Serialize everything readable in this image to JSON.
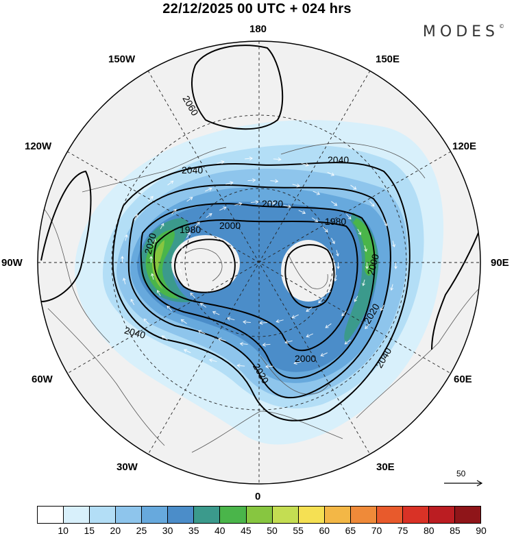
{
  "title": "22/12/2025  00 UTC  + 024 hrs",
  "brand": {
    "name": "MODES",
    "mark": "©"
  },
  "longitude_labels": {
    "n180": "180",
    "e150": "150E",
    "e120": "120E",
    "e90": "90E",
    "e60": "60E",
    "e30": "30E",
    "s0": "0",
    "w30": "30W",
    "w60": "60W",
    "w90": "90W",
    "w120": "120W",
    "w150": "150W"
  },
  "contours": [
    "1980",
    "2000",
    "2020",
    "2040",
    "2060"
  ],
  "colorbar": {
    "ticks": [
      "10",
      "15",
      "20",
      "25",
      "30",
      "35",
      "40",
      "45",
      "50",
      "55",
      "60",
      "65",
      "70",
      "75",
      "80",
      "85",
      "90"
    ],
    "colors": [
      "#ffffff",
      "#d8f0fb",
      "#b3def6",
      "#8ec5ec",
      "#67a9dd",
      "#4b8dc9",
      "#3b9a8c",
      "#4ab54a",
      "#87c640",
      "#c4dd52",
      "#f5e053",
      "#f3b746",
      "#ef8a39",
      "#e85a2c",
      "#d93226",
      "#bb1d22",
      "#8f1519"
    ]
  },
  "reference_vector": {
    "value": "50"
  }
}
